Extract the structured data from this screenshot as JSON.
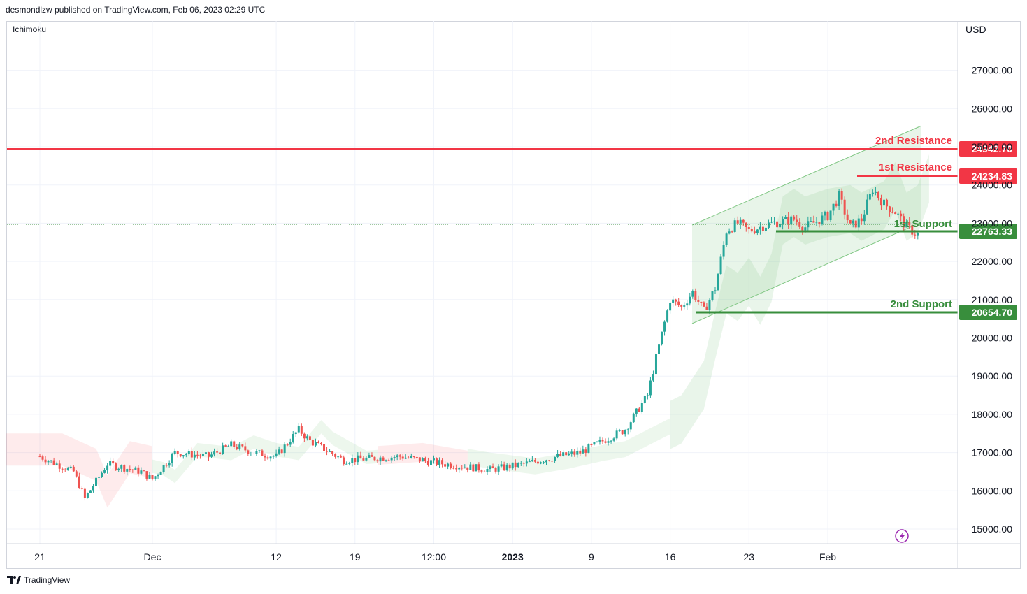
{
  "header": {
    "publish_text": "desmondlzw published on TradingView.com, Feb 06, 2023 02:29 UTC"
  },
  "indicator_label": "Ichimoku",
  "currency_label": "USD",
  "footer": {
    "brand": "TradingView",
    "icon": "tradingview-logo-icon"
  },
  "colors": {
    "resistance": "#f23645",
    "support": "#388e3c",
    "up_candle": "#26a69a",
    "down_candle": "#ef5350",
    "channel": "#81c784"
  },
  "chart_data": {
    "type": "candlestick",
    "title": "",
    "ylabel": "USD",
    "ylim": [
      14600,
      28000
    ],
    "y_ticks": [
      "15000.00",
      "16000.00",
      "17000.00",
      "18000.00",
      "19000.00",
      "20000.00",
      "21000.00",
      "22000.00",
      "23000.00",
      "24000.00",
      "25000.00",
      "26000.00",
      "27000.00"
    ],
    "x_tick_labels": [
      "21",
      "Dec",
      "12",
      "19",
      "12:00",
      "2023",
      "9",
      "16",
      "23",
      "Feb"
    ],
    "x_tick_positions": [
      0,
      10,
      21,
      28,
      35,
      42,
      49,
      56,
      63,
      70
    ],
    "grid": true,
    "price_path": [
      [
        0,
        16900
      ],
      [
        3,
        16500
      ],
      [
        4,
        15800
      ],
      [
        6,
        16700
      ],
      [
        9,
        16500
      ],
      [
        10,
        16300
      ],
      [
        12,
        17000
      ],
      [
        15,
        16900
      ],
      [
        17,
        17200
      ],
      [
        19,
        17000
      ],
      [
        21,
        16900
      ],
      [
        23,
        17600
      ],
      [
        24,
        17300
      ],
      [
        27,
        16800
      ],
      [
        32,
        16900
      ],
      [
        36,
        16700
      ],
      [
        40,
        16550
      ],
      [
        43,
        16700
      ],
      [
        46,
        16900
      ],
      [
        48,
        17000
      ],
      [
        50,
        17300
      ],
      [
        52,
        17600
      ],
      [
        54,
        18500
      ],
      [
        55,
        19800
      ],
      [
        56,
        21000
      ],
      [
        57,
        20800
      ],
      [
        58,
        21200
      ],
      [
        59,
        20700
      ],
      [
        60,
        21300
      ],
      [
        61,
        22800
      ],
      [
        62,
        23000
      ],
      [
        63,
        22800
      ],
      [
        65,
        23000
      ],
      [
        67,
        23100
      ],
      [
        68,
        22900
      ],
      [
        70,
        23200
      ],
      [
        71,
        23700
      ],
      [
        72,
        22900
      ],
      [
        73,
        23100
      ],
      [
        74,
        23900
      ],
      [
        75,
        23500
      ],
      [
        76,
        23300
      ],
      [
        77,
        22900
      ],
      [
        78,
        22700
      ]
    ],
    "levels": [
      {
        "label": "2nd Resistance",
        "value": "24942.70",
        "kind": "resistance"
      },
      {
        "label": "1st Resistance",
        "value": "24234.83",
        "kind": "resistance"
      },
      {
        "label": "1st Support",
        "value": "22763.33",
        "kind": "support"
      },
      {
        "label": "2nd Support",
        "value": "20654.70",
        "kind": "support"
      }
    ]
  }
}
